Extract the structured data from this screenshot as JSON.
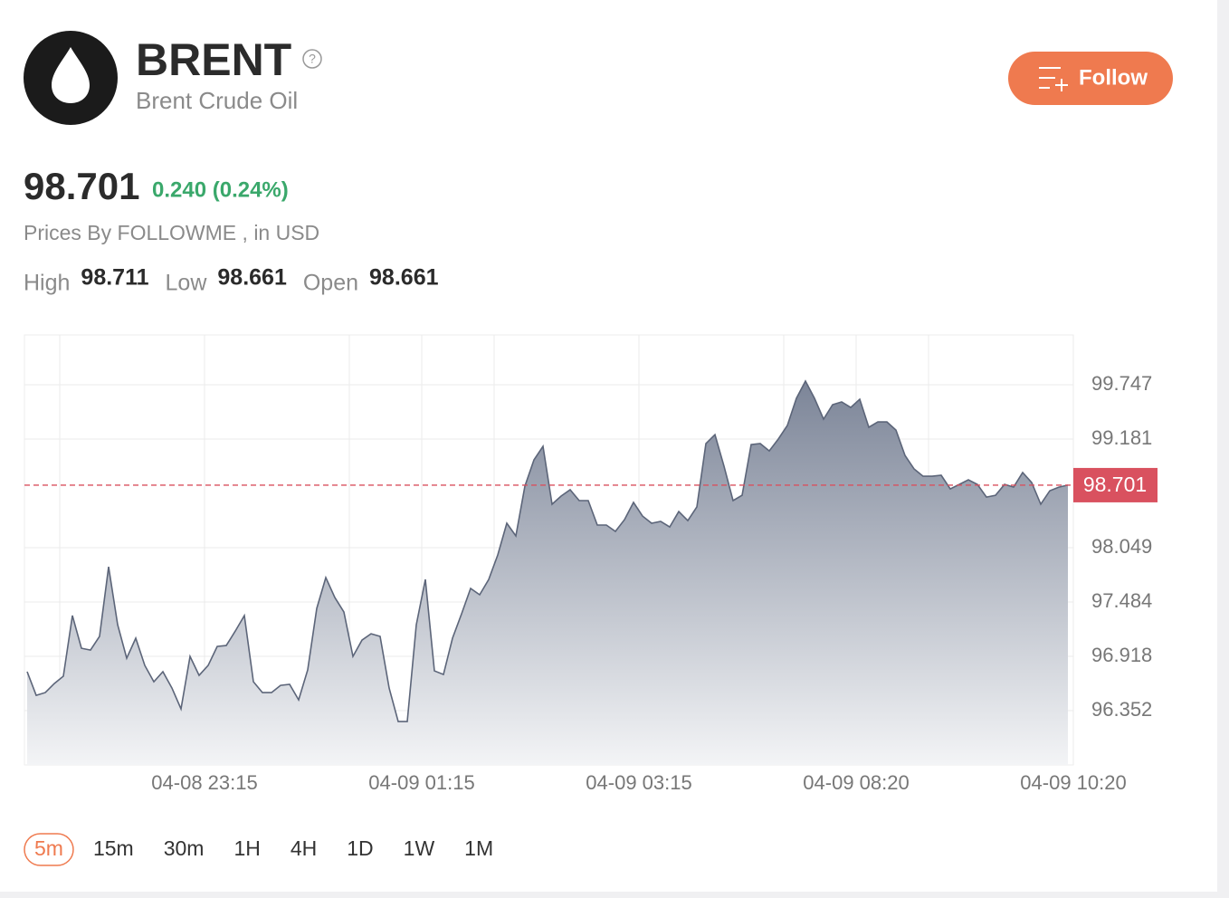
{
  "header": {
    "title": "BRENT",
    "help": "?",
    "subtitle": "Brent Crude Oil",
    "follow_button": "Follow"
  },
  "quote": {
    "price": "98.701",
    "change": "0.240 (0.24%)",
    "source": "Prices By FOLLOWME , in USD",
    "stats": [
      {
        "label": "High",
        "value": "98.711"
      },
      {
        "label": "Low",
        "value": "98.661"
      },
      {
        "label": "Open",
        "value": "98.661"
      }
    ]
  },
  "chart_data": {
    "type": "area",
    "series": [
      {
        "color": "#5c6579",
        "values": [
          96.757,
          96.511,
          96.54,
          96.634,
          96.71,
          97.342,
          97.002,
          96.983,
          97.125,
          97.851,
          97.247,
          96.898,
          97.106,
          96.823,
          96.653,
          96.757,
          96.587,
          96.37,
          96.917,
          96.719,
          96.823,
          97.021,
          97.03,
          97.181,
          97.342,
          96.653,
          96.54,
          96.54,
          96.615,
          96.625,
          96.464,
          96.776,
          97.417,
          97.738,
          97.53,
          97.379,
          96.917,
          97.087,
          97.153,
          97.125,
          96.587,
          96.238,
          96.238,
          97.247,
          97.719,
          96.766,
          96.728,
          97.106,
          97.36,
          97.625,
          97.559,
          97.719,
          97.974,
          98.304,
          98.172,
          98.691,
          98.964,
          99.106,
          98.502,
          98.587,
          98.653,
          98.54,
          98.54,
          98.285,
          98.285,
          98.219,
          98.341,
          98.521,
          98.379,
          98.304,
          98.323,
          98.266,
          98.426,
          98.332,
          98.474,
          99.134,
          99.228,
          98.898,
          98.54,
          98.596,
          99.124,
          99.134,
          99.058,
          99.181,
          99.323,
          99.606,
          99.785,
          99.606,
          99.389,
          99.54,
          99.568,
          99.511,
          99.596,
          99.304,
          99.36,
          99.36,
          99.275,
          99.011,
          98.87,
          98.794,
          98.794,
          98.804,
          98.662,
          98.709,
          98.757,
          98.709,
          98.577,
          98.596,
          98.709,
          98.681,
          98.832,
          98.728,
          98.502,
          98.643,
          98.681,
          98.701
        ]
      }
    ],
    "current_price": 98.701,
    "current_price_color": "#d9515f",
    "xlim": [
      -0.3,
      115.6
    ],
    "ylim": [
      95.786,
      100.266
    ],
    "xticks": [
      {
        "value": 3.6,
        "label": null
      },
      {
        "value": 19.6,
        "label": "04-08 23:15"
      },
      {
        "value": 35.6,
        "label": null
      },
      {
        "value": 43.6,
        "label": "04-09 01:15"
      },
      {
        "value": 51.6,
        "label": null
      },
      {
        "value": 67.6,
        "label": "04-09 03:15"
      },
      {
        "value": 83.6,
        "label": null
      },
      {
        "value": 91.6,
        "label": "04-09 08:20"
      },
      {
        "value": 99.6,
        "label": null
      },
      {
        "value": 115.6,
        "label": "04-09 10:20"
      }
    ],
    "yticks": [
      96.352,
      96.918,
      97.484,
      98.049,
      99.181,
      99.747
    ],
    "grid": true
  },
  "timeframes": {
    "options": [
      "5m",
      "15m",
      "30m",
      "1H",
      "4H",
      "1D",
      "1W",
      "1M"
    ],
    "selected": 0
  }
}
